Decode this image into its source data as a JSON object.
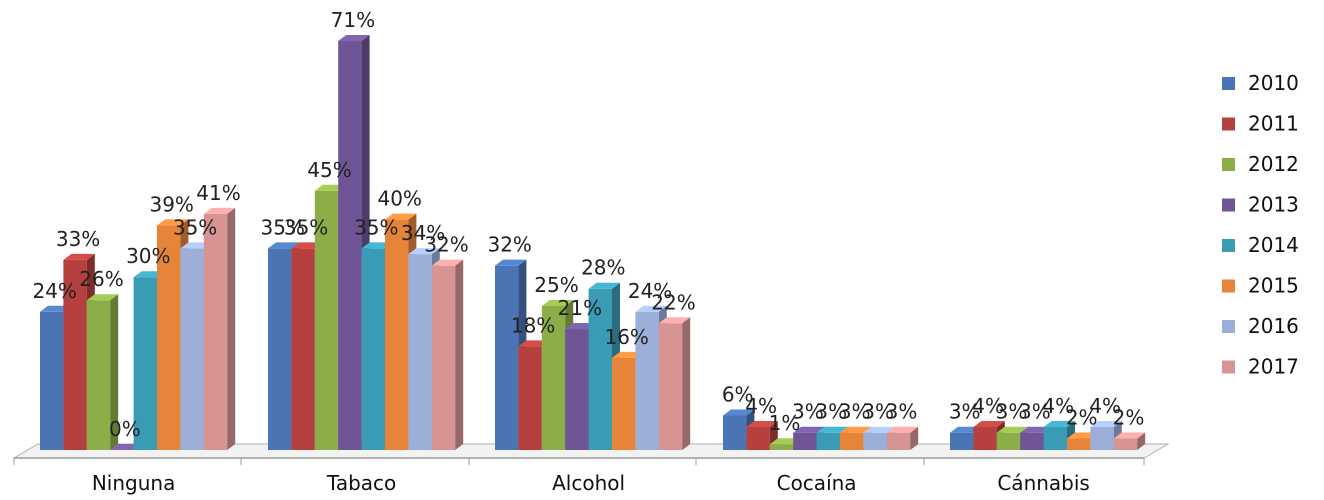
{
  "chart_data": {
    "type": "bar",
    "title": "",
    "xlabel": "",
    "ylabel": "",
    "ylim": [
      0,
      75
    ],
    "grid": false,
    "legend": "right",
    "categories": [
      "Ninguna",
      "Tabaco",
      "Alcohol",
      "Cocaína",
      "Cánnabis"
    ],
    "series": [
      {
        "name": "2010",
        "color": "#4a74b3",
        "values": [
          24,
          35,
          32,
          6,
          3
        ],
        "labels": [
          "24%",
          "35%",
          "32%",
          "6%",
          "3%"
        ]
      },
      {
        "name": "2011",
        "color": "#b5403d",
        "values": [
          33,
          35,
          18,
          4,
          4
        ],
        "labels": [
          "33%",
          "35%",
          "18%",
          "4%",
          "4%"
        ]
      },
      {
        "name": "2012",
        "color": "#8cae48",
        "values": [
          26,
          45,
          25,
          1,
          3
        ],
        "labels": [
          "26%",
          "45%",
          "25%",
          "1%",
          "3%"
        ]
      },
      {
        "name": "2013",
        "color": "#6f5596",
        "values": [
          0,
          71,
          21,
          3,
          3
        ],
        "labels": [
          "0%",
          "71%",
          "21%",
          "3%",
          "3%"
        ]
      },
      {
        "name": "2014",
        "color": "#3a9cb4",
        "values": [
          30,
          35,
          28,
          3,
          4
        ],
        "labels": [
          "30%",
          "35%",
          "28%",
          "3%",
          "4%"
        ]
      },
      {
        "name": "2015",
        "color": "#e6843a",
        "values": [
          39,
          40,
          16,
          3,
          2
        ],
        "labels": [
          "39%",
          "40%",
          "16%",
          "3%",
          "2%"
        ]
      },
      {
        "name": "2016",
        "color": "#9bafd8",
        "values": [
          35,
          34,
          24,
          3,
          4
        ],
        "labels": [
          "35%",
          "34%",
          "24%",
          "3%",
          "4%"
        ]
      },
      {
        "name": "2017",
        "color": "#d69593",
        "values": [
          41,
          32,
          22,
          3,
          2
        ],
        "labels": [
          "41%",
          "32%",
          "22%",
          "3%",
          "2%"
        ]
      }
    ]
  }
}
